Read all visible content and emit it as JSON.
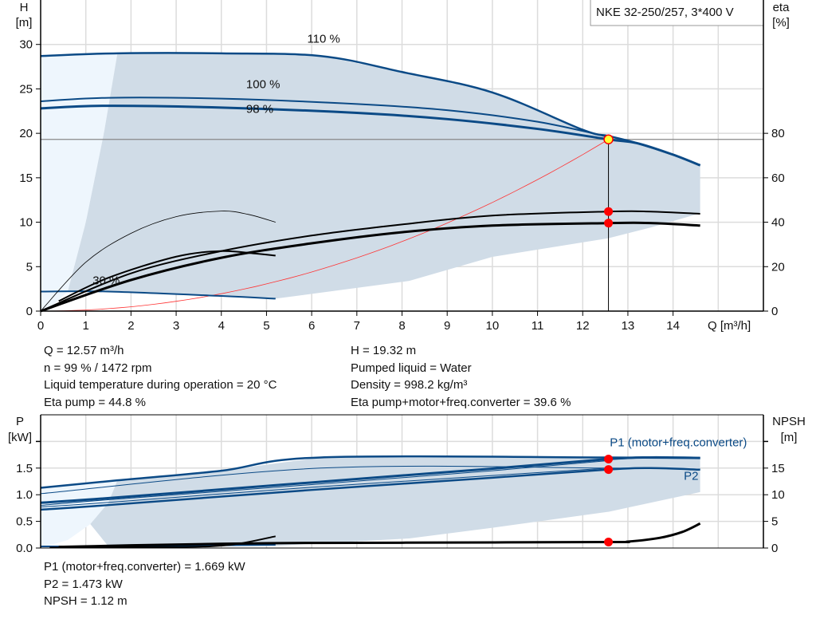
{
  "chart_data": [
    {
      "type": "line",
      "title_box": "NKE 32-250/257, 3*400 V",
      "xlabel": "Q [m³/h]",
      "ylabel": "H",
      "ylabel_unit": "[m]",
      "y2label": "eta",
      "y2label_unit": "[%]",
      "xlim": [
        0,
        16
      ],
      "ylim": [
        0,
        35
      ],
      "y2_per_y": 4,
      "xticks": [
        0,
        1,
        2,
        3,
        4,
        5,
        6,
        7,
        8,
        9,
        10,
        11,
        12,
        13,
        14
      ],
      "yticks": [
        0,
        5,
        10,
        15,
        20,
        25,
        30
      ],
      "y2ticks": [
        0,
        20,
        40,
        60,
        80
      ],
      "grid": true,
      "curve_labels": [
        {
          "text": "110 %",
          "q": 5.9,
          "h": 30.2
        },
        {
          "text": "100 %",
          "q": 4.55,
          "h": 25.1
        },
        {
          "text": "98 %",
          "q": 4.55,
          "h": 24.1
        },
        {
          "text": "30 %",
          "q": 1.15,
          "h": 3.0
        }
      ],
      "head_series": [
        {
          "id": "110",
          "points": [
            [
              0,
              28.7
            ],
            [
              1.7,
              29.0
            ],
            [
              4,
              29.0
            ],
            [
              6.2,
              28.7
            ],
            [
              8,
              26.9
            ],
            [
              10,
              24.6
            ],
            [
              12,
              20.4
            ],
            [
              12.57,
              19.7
            ],
            [
              13.2,
              18.9
            ],
            [
              14,
              17.6
            ],
            [
              14.6,
              16.4
            ]
          ]
        },
        {
          "id": "100",
          "points": [
            [
              0,
              23.6
            ],
            [
              1.5,
              24.0
            ],
            [
              4,
              23.9
            ],
            [
              7,
              23.3
            ],
            [
              9,
              22.6
            ],
            [
              11,
              21.3
            ],
            [
              12.57,
              19.6
            ]
          ]
        },
        {
          "id": "98",
          "points": [
            [
              0,
              22.8
            ],
            [
              1.4,
              23.1
            ],
            [
              4,
              22.9
            ],
            [
              7,
              22.3
            ],
            [
              9,
              21.6
            ],
            [
              11,
              20.5
            ],
            [
              12.57,
              19.32
            ],
            [
              13.2,
              18.9
            ],
            [
              14,
              17.6
            ],
            [
              14.6,
              16.4
            ]
          ]
        },
        {
          "id": "30",
          "points": [
            [
              0,
              2.2
            ],
            [
              1.5,
              2.2
            ],
            [
              4,
              1.7
            ],
            [
              5.2,
              1.4
            ]
          ]
        }
      ],
      "eta_series": [
        {
          "id": "eta-pump",
          "points": [
            [
              0,
              0
            ],
            [
              2,
              17
            ],
            [
              4,
              27
            ],
            [
              6,
              34
            ],
            [
              8,
              39
            ],
            [
              10,
              43
            ],
            [
              12.57,
              44.8
            ],
            [
              13.5,
              44.8
            ],
            [
              14.6,
              43.8
            ]
          ]
        },
        {
          "id": "eta-total",
          "points": [
            [
              0,
              0
            ],
            [
              2,
              14
            ],
            [
              4,
              24
            ],
            [
              6,
              30.5
            ],
            [
              8,
              35.5
            ],
            [
              10,
              38.5
            ],
            [
              12.57,
              39.6
            ],
            [
              13.5,
              39.6
            ],
            [
              14.6,
              38.5
            ]
          ]
        },
        {
          "id": "eta-30",
          "points": [
            [
              0.4,
              4.5
            ],
            [
              1.5,
              15
            ],
            [
              3,
              24.5
            ],
            [
              4,
              27
            ],
            [
              4.7,
              26
            ],
            [
              5.2,
              25
            ]
          ]
        },
        {
          "id": "eta-thin",
          "points": [
            [
              0,
              0
            ],
            [
              1,
              22
            ],
            [
              2,
              35
            ],
            [
              3,
              42.5
            ],
            [
              4,
              45
            ],
            [
              4.6,
              43.5
            ],
            [
              5.2,
              40
            ]
          ]
        }
      ],
      "system_curve": {
        "h_at_op": 19.32,
        "q_at_op": 12.57
      },
      "light_region": [
        [
          0,
          0
        ],
        [
          0,
          28.7
        ],
        [
          1.7,
          29
        ],
        [
          1.4,
          20
        ],
        [
          1.0,
          10
        ],
        [
          0.6,
          2.2
        ],
        [
          0.3,
          0.8
        ]
      ],
      "dark_region": [
        [
          1.7,
          29
        ],
        [
          4,
          29
        ],
        [
          6.2,
          28.7
        ],
        [
          8,
          26.9
        ],
        [
          10,
          24.6
        ],
        [
          12,
          20.4
        ],
        [
          12.57,
          19.7
        ],
        [
          13.2,
          18.9
        ],
        [
          14,
          17.6
        ],
        [
          14.6,
          16.4
        ],
        [
          14.6,
          11
        ],
        [
          13.5,
          9.4
        ],
        [
          12.57,
          8.2
        ],
        [
          10,
          6.1
        ],
        [
          8.16,
          3.4
        ],
        [
          5.2,
          1.4
        ],
        [
          4,
          1.7
        ],
        [
          1.5,
          2.2
        ],
        [
          0.6,
          2.2
        ],
        [
          1.0,
          10
        ],
        [
          1.4,
          20
        ]
      ],
      "markers": [
        {
          "q": 12.57,
          "h": 19.32,
          "kind": "yellow"
        },
        {
          "q": 12.57,
          "eta": 44.8
        },
        {
          "q": 12.57,
          "eta": 39.6
        }
      ]
    },
    {
      "type": "line",
      "ylabel": "P",
      "ylabel_unit": "[kW]",
      "y2label": "NPSH",
      "y2label_unit": "[m]",
      "xlim": [
        0,
        16
      ],
      "ylim": [
        0,
        2.5
      ],
      "y2_per_y": 10,
      "yticks": [
        "0.0",
        "0.5",
        "1.0",
        "1.5"
      ],
      "y2ticks": [
        0,
        5,
        10,
        15
      ],
      "grid": true,
      "series_labels": [
        {
          "text": "P1 (motor+freq.converter)",
          "q": 12.6,
          "p": 1.91
        },
        {
          "text": "P2",
          "q": 14.4,
          "p": 1.28
        }
      ],
      "power_series": [
        {
          "id": "p1-110",
          "points": [
            [
              0,
              1.13
            ],
            [
              1.7,
              1.27
            ],
            [
              4,
              1.45
            ],
            [
              6.2,
              1.7
            ],
            [
              12.57,
              1.7
            ],
            [
              14.6,
              1.69
            ]
          ],
          "w": 2.5
        },
        {
          "id": "p2-110",
          "points": [
            [
              0,
              1.02
            ],
            [
              6.2,
              1.5
            ],
            [
              12.57,
              1.5
            ],
            [
              14.6,
              1.48
            ]
          ],
          "w": 1
        },
        {
          "id": "p1",
          "points": [
            [
              0,
              0.85
            ],
            [
              1.4,
              0.93
            ],
            [
              6,
              1.23
            ],
            [
              10,
              1.49
            ],
            [
              12.57,
              1.669
            ],
            [
              13.5,
              1.7
            ],
            [
              14.6,
              1.69
            ]
          ],
          "w": 3
        },
        {
          "id": "p1b",
          "points": [
            [
              0,
              0.8
            ],
            [
              1.4,
              0.9
            ],
            [
              6,
              1.19
            ],
            [
              10,
              1.45
            ],
            [
              12.57,
              1.64
            ]
          ],
          "w": 1
        },
        {
          "id": "p2b",
          "points": [
            [
              0,
              0.77
            ],
            [
              1.4,
              0.85
            ],
            [
              6,
              1.14
            ],
            [
              10,
              1.36
            ],
            [
              12.57,
              1.5
            ]
          ],
          "w": 1
        },
        {
          "id": "p2",
          "points": [
            [
              0,
              0.72
            ],
            [
              1.4,
              0.8
            ],
            [
              6,
              1.09
            ],
            [
              10,
              1.32
            ],
            [
              12.57,
              1.473
            ],
            [
              13.5,
              1.5
            ],
            [
              14.6,
              1.47
            ]
          ],
          "w": 2.5
        },
        {
          "id": "p-30",
          "points": [
            [
              0,
              0.03
            ],
            [
              1.5,
              0.03
            ],
            [
              4,
              0.05
            ],
            [
              5.2,
              0.06
            ]
          ],
          "w": 2
        }
      ],
      "npsh_series": [
        {
          "id": "npsh",
          "points": [
            [
              0.4,
              0.2
            ],
            [
              2,
              0.5
            ],
            [
              5,
              0.9
            ],
            [
              8,
              1.0
            ],
            [
              12.57,
              1.12
            ],
            [
              13,
              1.2
            ],
            [
              13.7,
              1.9
            ],
            [
              14.2,
              3
            ],
            [
              14.6,
              4.6
            ]
          ]
        },
        {
          "id": "npsh-30",
          "points": [
            [
              0.2,
              0.1
            ],
            [
              3,
              0.2
            ],
            [
              4.2,
              0.6
            ],
            [
              5.2,
              2.2
            ]
          ]
        }
      ],
      "light_region": [
        [
          0,
          0
        ],
        [
          0,
          1.13
        ],
        [
          1.7,
          1.27
        ],
        [
          1.5,
          0.85
        ],
        [
          1.1,
          0.45
        ],
        [
          0.6,
          0.15
        ],
        [
          0.2,
          0.05
        ]
      ],
      "dark_region": [
        [
          1.7,
          1.27
        ],
        [
          4,
          1.45
        ],
        [
          6.2,
          1.7
        ],
        [
          12.57,
          1.7
        ],
        [
          14.6,
          1.69
        ],
        [
          14.6,
          1.05
        ],
        [
          13.5,
          0.85
        ],
        [
          12.57,
          0.68
        ],
        [
          10,
          0.38
        ],
        [
          8.16,
          0.18
        ],
        [
          5.2,
          0.04
        ],
        [
          1.5,
          0.03
        ],
        [
          1.1,
          0.45
        ],
        [
          1.5,
          0.85
        ]
      ],
      "markers": [
        {
          "q": 12.57,
          "p": 1.669
        },
        {
          "q": 12.57,
          "p": 1.473
        },
        {
          "q": 12.57,
          "npsh": 1.12
        }
      ]
    }
  ],
  "colors": {
    "curve": "#0b4a86",
    "region": "#d0dce7",
    "light_region": "#eef6fd",
    "marker": "#ff0000",
    "op_point": "#ffff33",
    "grid": "#dcdcdc",
    "system": "#ff3333"
  },
  "info_top": {
    "left": [
      "Q = 12.57 m³/h",
      "n = 99 % / 1472 rpm",
      "Liquid temperature during operation = 20 °C",
      "Eta pump = 44.8 %"
    ],
    "right": [
      "H = 19.32 m",
      "Pumped liquid = Water",
      "Density = 998.2 kg/m³",
      "Eta pump+motor+freq.converter = 39.6 %"
    ]
  },
  "info_bottom": [
    "P1 (motor+freq.converter) = 1.669 kW",
    "P2 = 1.473 kW",
    "NPSH = 1.12 m"
  ]
}
